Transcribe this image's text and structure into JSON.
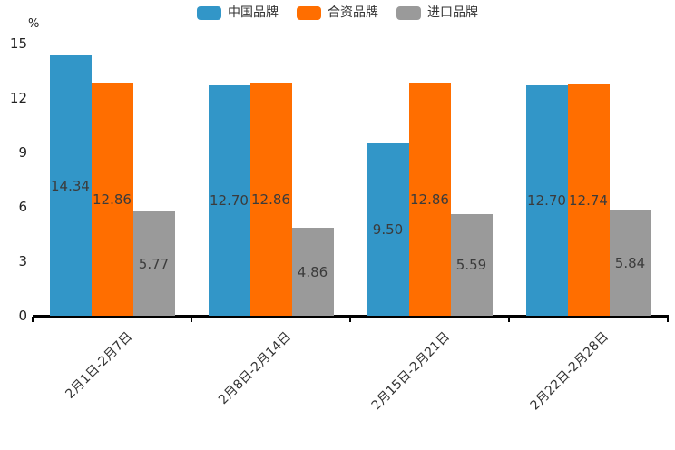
{
  "chart_data": {
    "type": "bar",
    "title": "",
    "unit_label": "%",
    "categories": [
      "2月1日-2月7日",
      "2月8日-2月14日",
      "2月15日-2月21日",
      "2月22日-2月28日"
    ],
    "series": [
      {
        "name": "中国品牌",
        "color": "#3296C8",
        "values": [
          14.34,
          12.7,
          9.5,
          12.7
        ]
      },
      {
        "name": "合资品牌",
        "color": "#FF6E00",
        "values": [
          12.86,
          12.86,
          12.86,
          12.74
        ]
      },
      {
        "name": "进口品牌",
        "color": "#9A9A9A",
        "values": [
          5.77,
          4.86,
          5.59,
          5.84
        ]
      }
    ],
    "ylim": [
      0,
      15
    ],
    "yticks": [
      0,
      3,
      6,
      9,
      12,
      15
    ],
    "grid": false,
    "legend_position": "top",
    "value_labels": true,
    "value_label_decimals": 2,
    "value_label_color": "#3b3b3b",
    "axis_color": "#000000",
    "xlabel_rotation_deg": -45
  }
}
